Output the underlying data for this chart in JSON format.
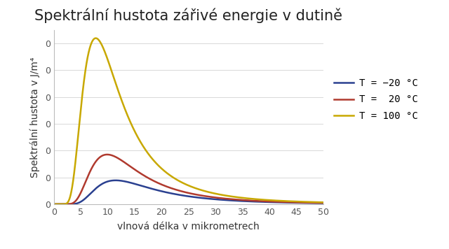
{
  "title": "Spektrální hustota zářivé energie v dutině",
  "xlabel": "vlnová délka v mikrometrech",
  "ylabel": "Spektrální hustota v J/m⁴",
  "temperatures_K": [
    253,
    293,
    373
  ],
  "colors": [
    "#2a4090",
    "#b03a2e",
    "#c8a800"
  ],
  "legend_labels": [
    "T = −20 °C",
    "T =  20 °C",
    "T = 100 °C"
  ],
  "xlim": [
    0,
    50
  ],
  "xticks": [
    0,
    5,
    10,
    15,
    20,
    25,
    30,
    35,
    40,
    45,
    50
  ],
  "background_color": "#ffffff",
  "grid_color": "#d8d8d8",
  "title_fontsize": 15,
  "label_fontsize": 10,
  "tick_fontsize": 9,
  "legend_fontsize": 10,
  "linewidth": 1.8
}
